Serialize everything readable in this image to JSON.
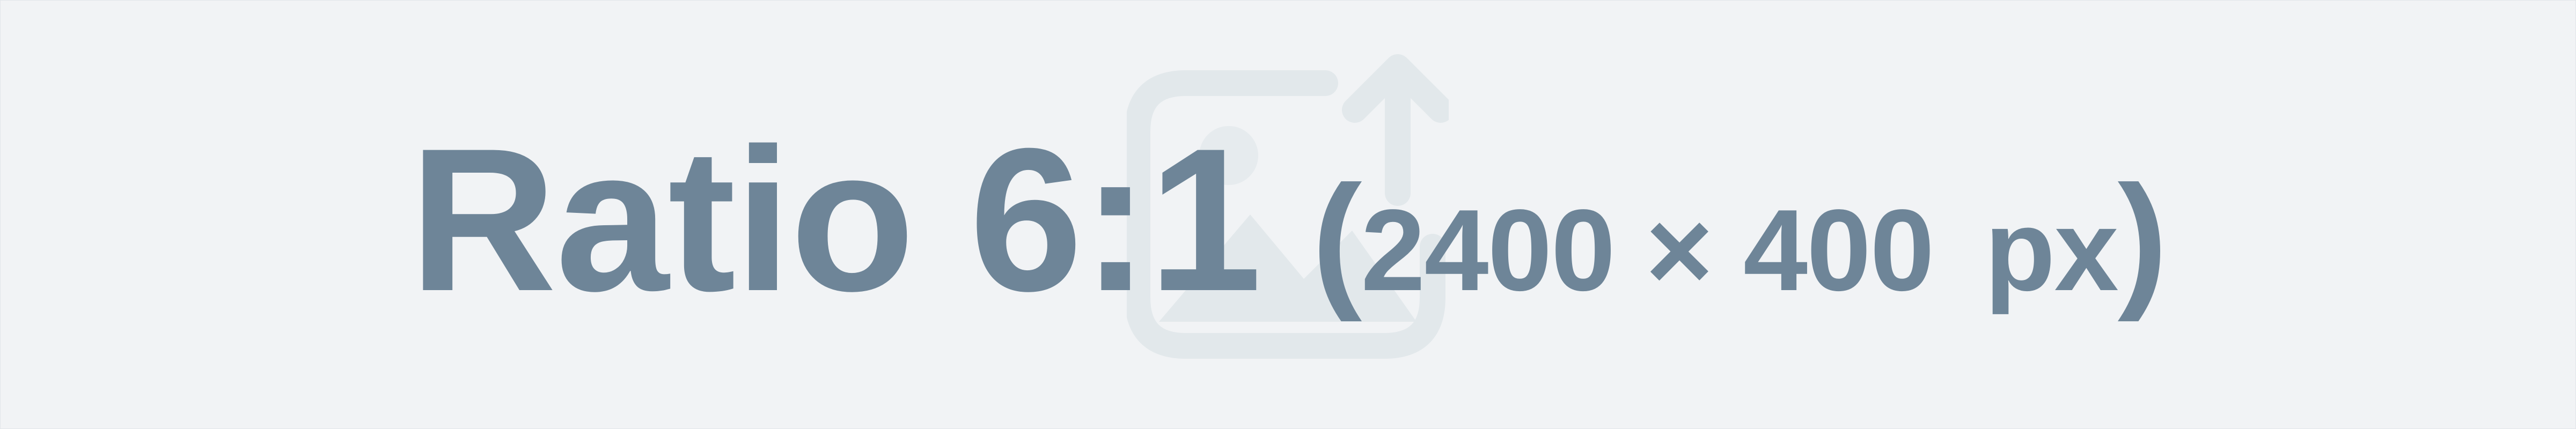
{
  "placeholder": {
    "ratio_text": "Ratio 6:1",
    "open_paren": "(",
    "dimensions_text": "2400 × 400",
    "unit_text": "px",
    "close_paren": ")",
    "icon": "image-upload-icon",
    "text_color": "#6e8598",
    "icon_color": "#e2e8eb",
    "background_color": "#f1f3f5"
  }
}
